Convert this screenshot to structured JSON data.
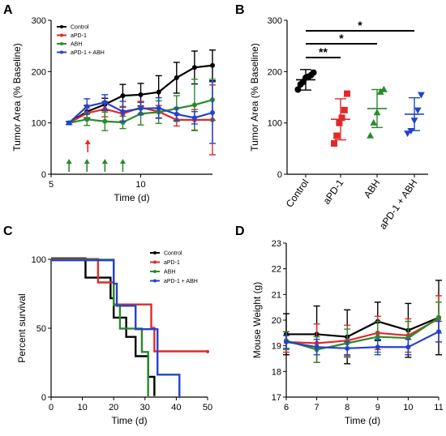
{
  "chart_data": [
    {
      "panel": "A",
      "type": "line",
      "xlabel": "Time (d)",
      "ylabel": "Tumor Area  (% Baseline)",
      "xlim": [
        5,
        14
      ],
      "ylim": [
        0,
        300
      ],
      "xticks": [
        5,
        10
      ],
      "yticks": [
        0,
        100,
        200,
        300
      ],
      "legend": "top-left",
      "arrows": [
        {
          "x": 6,
          "color": "#2a8a2a"
        },
        {
          "x": 7,
          "color": "#e02a2a"
        },
        {
          "x": 7,
          "color": "#2a8a2a"
        },
        {
          "x": 8,
          "color": "#2a8a2a"
        },
        {
          "x": 9,
          "color": "#2a8a2a"
        }
      ],
      "x": [
        6,
        7,
        8,
        9,
        10,
        11,
        12,
        13,
        14
      ],
      "series": [
        {
          "name": "Control",
          "color": "#000000",
          "values": [
            100,
            122,
            136,
            153,
            155,
            160,
            188,
            208,
            212
          ],
          "errors": [
            3,
            12,
            12,
            22,
            22,
            32,
            30,
            32,
            30
          ]
        },
        {
          "name": "aPD-1",
          "color": "#e02a2a",
          "values": [
            100,
            119,
            127,
            118,
            130,
            122,
            106,
            106,
            106
          ],
          "errors": [
            3,
            10,
            15,
            14,
            12,
            12,
            12,
            20,
            68
          ]
        },
        {
          "name": "ABH",
          "color": "#2a8a2a",
          "values": [
            100,
            107,
            103,
            101,
            118,
            121,
            128,
            135,
            145
          ],
          "errors": [
            3,
            12,
            18,
            12,
            22,
            22,
            25,
            50,
            40
          ]
        },
        {
          "name": "aPD-1 + ABH",
          "color": "#2244cc",
          "values": [
            100,
            132,
            140,
            122,
            128,
            129,
            117,
            110,
            120
          ],
          "errors": [
            3,
            15,
            15,
            20,
            12,
            20,
            12,
            12,
            60
          ]
        }
      ]
    },
    {
      "panel": "B",
      "type": "scatter",
      "ylabel": "Tumor Area (% Baseline)",
      "ylim": [
        0,
        300
      ],
      "yticks": [
        0,
        100,
        200,
        300
      ],
      "categories": [
        "Control",
        "aPD-1",
        "ABH",
        "aPD-1 + ABH"
      ],
      "groups": [
        {
          "name": "Control",
          "color": "#000000",
          "marker": "circle",
          "points": [
            165,
            175,
            180,
            188,
            190,
            193,
            198
          ],
          "mean": 184,
          "sd": 20
        },
        {
          "name": "aPD-1",
          "color": "#e02a2a",
          "marker": "square",
          "points": [
            60,
            75,
            100,
            110,
            125,
            157
          ],
          "mean": 107,
          "sd": 40
        },
        {
          "name": "ABH",
          "color": "#2a8a2a",
          "marker": "triangle",
          "points": [
            75,
            100,
            120,
            160,
            165
          ],
          "mean": 128,
          "sd": 37
        },
        {
          "name": "aPD-1 + ABH",
          "color": "#2244cc",
          "marker": "triangle-down",
          "points": [
            80,
            85,
            105,
            125,
            155
          ],
          "mean": 117,
          "sd": 32
        }
      ],
      "significance": [
        {
          "from": "Control",
          "to": "aPD-1",
          "label": "**"
        },
        {
          "from": "Control",
          "to": "ABH",
          "label": "*"
        },
        {
          "from": "Control",
          "to": "aPD-1 + ABH",
          "label": "*"
        }
      ]
    },
    {
      "panel": "C",
      "type": "line",
      "subtype": "step",
      "xlabel": "Time (d)",
      "ylabel": "Percent survival",
      "xlim": [
        0,
        50
      ],
      "ylim": [
        0,
        100
      ],
      "xticks": [
        0,
        10,
        20,
        30,
        40,
        50
      ],
      "yticks": [
        0,
        50,
        100
      ],
      "legend": "top-right",
      "series": [
        {
          "name": "Control",
          "color": "#000000",
          "steps": [
            [
              0,
              100
            ],
            [
              11,
              86
            ],
            [
              19,
              71
            ],
            [
              20,
              57
            ],
            [
              24,
              43
            ],
            [
              27,
              29
            ],
            [
              31,
              14
            ],
            [
              33,
              0
            ]
          ]
        },
        {
          "name": "aPD-1",
          "color": "#e02a2a",
          "steps": [
            [
              0,
              100
            ],
            [
              15,
              83
            ],
            [
              20,
              67
            ],
            [
              32,
              50
            ],
            [
              33,
              33
            ],
            [
              50,
              33
            ]
          ]
        },
        {
          "name": "ABH",
          "color": "#2a8a2a",
          "steps": [
            [
              0,
              100
            ],
            [
              18,
              100
            ],
            [
              20,
              67
            ],
            [
              22,
              50
            ],
            [
              29,
              33
            ],
            [
              31,
              0
            ]
          ]
        },
        {
          "name": "aPD-1 + ABH",
          "color": "#2244cc",
          "steps": [
            [
              0,
              100
            ],
            [
              20,
              83
            ],
            [
              21,
              67
            ],
            [
              27,
              50
            ],
            [
              34,
              17
            ],
            [
              41,
              0
            ]
          ]
        }
      ]
    },
    {
      "panel": "D",
      "type": "line",
      "xlabel": "Time (d)",
      "ylabel": "Mouse Weight (g)",
      "xlim": [
        6,
        11
      ],
      "ylim": [
        17,
        23
      ],
      "xticks": [
        6,
        7,
        8,
        9,
        10,
        11
      ],
      "yticks": [
        17,
        18,
        19,
        20,
        21,
        22,
        23
      ],
      "x": [
        6,
        7,
        8,
        9,
        10,
        11
      ],
      "series": [
        {
          "name": "Control",
          "color": "#000000",
          "values": [
            19.45,
            19.45,
            19.35,
            19.95,
            19.6,
            20.1
          ],
          "errors": [
            0.8,
            1.1,
            1.05,
            0.75,
            1.05,
            1.45
          ]
        },
        {
          "name": "aPD-1",
          "color": "#e02a2a",
          "values": [
            19.15,
            19.1,
            19.2,
            19.5,
            19.4,
            20.05
          ],
          "errors": [
            0.4,
            0.75,
            0.6,
            0.65,
            0.65,
            0.9
          ]
        },
        {
          "name": "ABH",
          "color": "#2a8a2a",
          "values": [
            19.2,
            18.85,
            19.1,
            19.35,
            19.3,
            20.1
          ],
          "errors": [
            0.35,
            0.5,
            0.55,
            0.6,
            0.65,
            0.6
          ]
        },
        {
          "name": "aPD-1 + ABH",
          "color": "#2244cc",
          "values": [
            19.15,
            18.95,
            18.9,
            18.95,
            18.95,
            19.55
          ],
          "errors": [
            0.25,
            0.3,
            0.25,
            0.3,
            0.3,
            0.4
          ]
        }
      ]
    }
  ],
  "panels": {
    "A": {
      "letter": "A"
    },
    "B": {
      "letter": "B"
    },
    "C": {
      "letter": "C"
    },
    "D": {
      "letter": "D"
    }
  }
}
